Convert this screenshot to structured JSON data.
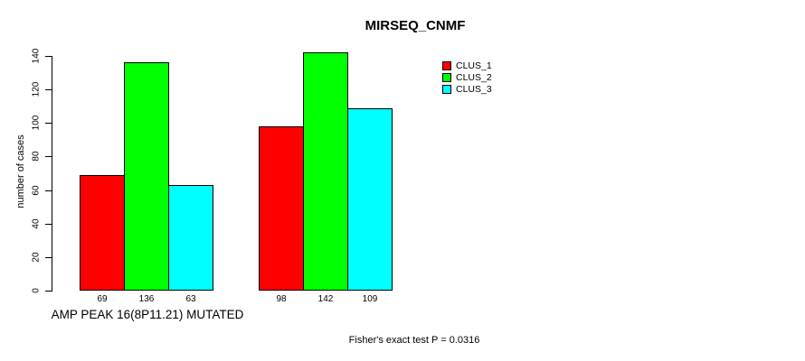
{
  "title": "MIRSEQ_CNMF",
  "chart_data": {
    "type": "bar",
    "title": "MIRSEQ_CNMF",
    "ylabel": "number of cases",
    "xlabel": "AMP PEAK 16(8P11.21) MUTATED",
    "ylim": [
      0,
      140
    ],
    "yticks": [
      0,
      20,
      40,
      60,
      80,
      100,
      120,
      140
    ],
    "grid": false,
    "legend_position": "top-right",
    "categories": [
      "AMP PEAK 16(8P11.21) MUTATED",
      ""
    ],
    "series": [
      {
        "name": "CLUS_1",
        "color": "#ff0000",
        "values": [
          69,
          98
        ]
      },
      {
        "name": "CLUS_2",
        "color": "#00ff00",
        "values": [
          136,
          142
        ]
      },
      {
        "name": "CLUS_3",
        "color": "#00ffff",
        "values": [
          63,
          109
        ]
      }
    ],
    "bar_value_labels": [
      [
        69,
        136,
        63
      ],
      [
        98,
        142,
        109
      ]
    ],
    "annotation": "Fisher's exact test P = 0.0316"
  }
}
